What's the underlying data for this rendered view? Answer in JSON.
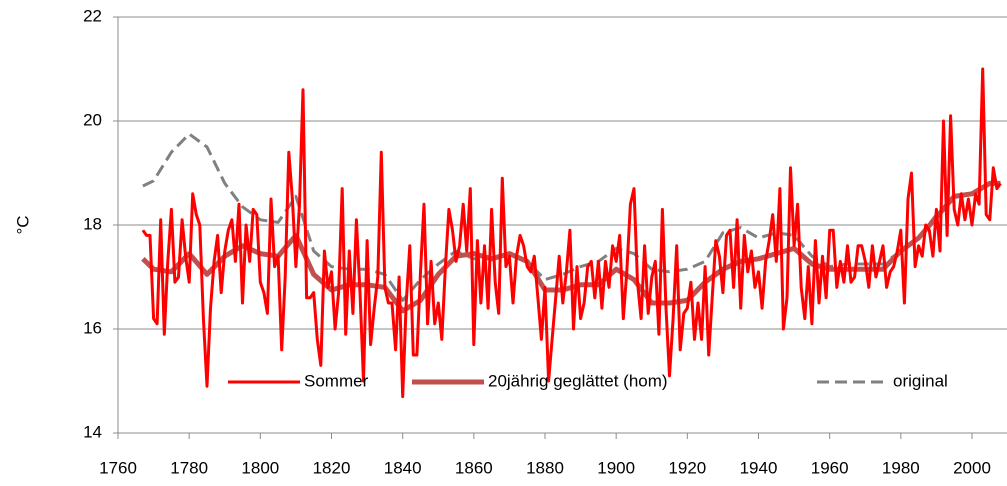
{
  "chart_data": {
    "type": "line",
    "y_label": "°C",
    "xlim": [
      1760,
      2010
    ],
    "xticks": [
      1760,
      1780,
      1800,
      1820,
      1840,
      1860,
      1880,
      1900,
      1920,
      1940,
      1960,
      1980,
      2000
    ],
    "ylim": [
      14,
      22
    ],
    "yticks": [
      14,
      16,
      18,
      20,
      22
    ],
    "grid": true,
    "legend": "bottom",
    "x": [
      1767,
      1768,
      1769,
      1770,
      1771,
      1772,
      1773,
      1774,
      1775,
      1776,
      1777,
      1778,
      1779,
      1780,
      1781,
      1782,
      1783,
      1784,
      1785,
      1786,
      1787,
      1788,
      1789,
      1790,
      1791,
      1792,
      1793,
      1794,
      1795,
      1796,
      1797,
      1798,
      1799,
      1800,
      1801,
      1802,
      1803,
      1804,
      1805,
      1806,
      1807,
      1808,
      1809,
      1810,
      1811,
      1812,
      1813,
      1814,
      1815,
      1816,
      1817,
      1818,
      1819,
      1820,
      1821,
      1822,
      1823,
      1824,
      1825,
      1826,
      1827,
      1828,
      1829,
      1830,
      1831,
      1832,
      1833,
      1834,
      1835,
      1836,
      1837,
      1838,
      1839,
      1840,
      1841,
      1842,
      1843,
      1844,
      1845,
      1846,
      1847,
      1848,
      1849,
      1850,
      1851,
      1852,
      1853,
      1854,
      1855,
      1856,
      1857,
      1858,
      1859,
      1860,
      1861,
      1862,
      1863,
      1864,
      1865,
      1866,
      1867,
      1868,
      1869,
      1870,
      1871,
      1872,
      1873,
      1874,
      1875,
      1876,
      1877,
      1878,
      1879,
      1880,
      1881,
      1882,
      1883,
      1884,
      1885,
      1886,
      1887,
      1888,
      1889,
      1890,
      1891,
      1892,
      1893,
      1894,
      1895,
      1896,
      1897,
      1898,
      1899,
      1900,
      1901,
      1902,
      1903,
      1904,
      1905,
      1906,
      1907,
      1908,
      1909,
      1910,
      1911,
      1912,
      1913,
      1914,
      1915,
      1916,
      1917,
      1918,
      1919,
      1920,
      1921,
      1922,
      1923,
      1924,
      1925,
      1926,
      1927,
      1928,
      1929,
      1930,
      1931,
      1932,
      1933,
      1934,
      1935,
      1936,
      1937,
      1938,
      1939,
      1940,
      1941,
      1942,
      1943,
      1944,
      1945,
      1946,
      1947,
      1948,
      1949,
      1950,
      1951,
      1952,
      1953,
      1954,
      1955,
      1956,
      1957,
      1958,
      1959,
      1960,
      1961,
      1962,
      1963,
      1964,
      1965,
      1966,
      1967,
      1968,
      1969,
      1970,
      1971,
      1972,
      1973,
      1974,
      1975,
      1976,
      1977,
      1978,
      1979,
      1980,
      1981,
      1982,
      1983,
      1984,
      1985,
      1986,
      1987,
      1988,
      1989,
      1990,
      1991,
      1992,
      1993,
      1994,
      1995,
      1996,
      1997,
      1998,
      1999,
      2000,
      2001,
      2002,
      2003,
      2004,
      2005,
      2006,
      2007,
      2008
    ],
    "series": [
      {
        "name": "Sommer",
        "color": "#ff0000",
        "width": 3,
        "dash": false,
        "values": [
          17.9,
          17.8,
          17.8,
          16.2,
          16.1,
          18.1,
          15.9,
          17.3,
          18.3,
          16.9,
          17.0,
          18.1,
          17.4,
          16.9,
          18.6,
          18.2,
          18.0,
          16.2,
          14.9,
          16.4,
          17.3,
          17.8,
          16.7,
          17.5,
          17.9,
          18.1,
          17.3,
          18.4,
          16.5,
          18.0,
          17.3,
          18.3,
          18.2,
          16.9,
          16.7,
          16.3,
          18.5,
          17.2,
          17.4,
          15.6,
          17.0,
          19.4,
          18.5,
          17.2,
          18.4,
          20.6,
          16.6,
          16.6,
          16.7,
          15.8,
          15.3,
          17.5,
          16.8,
          17.1,
          16.0,
          16.7,
          18.7,
          15.9,
          17.5,
          16.3,
          18.1,
          16.7,
          15.0,
          17.7,
          15.7,
          16.4,
          17.0,
          19.4,
          16.8,
          16.5,
          16.5,
          15.6,
          17.0,
          14.7,
          16.5,
          17.6,
          15.5,
          15.5,
          17.1,
          18.4,
          16.1,
          17.3,
          16.1,
          16.5,
          15.8,
          17.2,
          18.3,
          17.9,
          17.3,
          17.6,
          18.4,
          17.5,
          18.7,
          15.7,
          17.7,
          16.5,
          17.6,
          16.4,
          18.3,
          16.9,
          16.3,
          18.9,
          17.2,
          17.4,
          16.5,
          17.4,
          17.8,
          17.6,
          17.2,
          17.1,
          17.4,
          16.6,
          15.8,
          16.8,
          15.0,
          15.8,
          16.6,
          17.4,
          16.5,
          17.1,
          17.9,
          16.0,
          17.2,
          16.2,
          16.5,
          17.2,
          17.3,
          16.6,
          17.3,
          16.4,
          17.3,
          16.8,
          17.6,
          17.3,
          17.8,
          16.2,
          17.1,
          18.4,
          18.7,
          16.9,
          16.2,
          17.6,
          16.3,
          17.0,
          17.3,
          15.9,
          18.3,
          16.4,
          15.1,
          16.2,
          17.6,
          15.6,
          16.3,
          16.4,
          16.9,
          15.8,
          16.5,
          15.8,
          17.2,
          15.5,
          16.6,
          17.7,
          17.4,
          16.7,
          17.8,
          17.9,
          16.8,
          18.1,
          16.4,
          17.8,
          17.1,
          17.5,
          16.8,
          17.1,
          16.4,
          17.3,
          17.7,
          18.2,
          17.3,
          18.7,
          16.0,
          16.6,
          19.1,
          17.6,
          18.4,
          16.8,
          16.2,
          17.2,
          16.1,
          17.7,
          16.5,
          17.4,
          16.6,
          17.9,
          17.9,
          16.8,
          17.3,
          16.9,
          17.6,
          16.9,
          17.0,
          17.6,
          17.6,
          17.3,
          16.8,
          17.6,
          17.0,
          17.3,
          17.6,
          16.8,
          17.1,
          17.2,
          17.5,
          17.9,
          16.5,
          18.5,
          19.0,
          17.2,
          17.6,
          17.4,
          18.0,
          17.9,
          17.4,
          18.3,
          17.5,
          20.0,
          17.8,
          20.1,
          18.3,
          18.0,
          18.6,
          18.1,
          18.5,
          18.0,
          18.6,
          18.4,
          21.0,
          18.2,
          18.1,
          19.1,
          18.7,
          18.8
        ]
      },
      {
        "name": "20jährig geglättet (hom)",
        "color": "#c0504d",
        "width": 5,
        "dash": false,
        "x": [
          1767,
          1770,
          1775,
          1780,
          1785,
          1790,
          1795,
          1800,
          1805,
          1810,
          1815,
          1820,
          1825,
          1830,
          1835,
          1840,
          1845,
          1850,
          1855,
          1860,
          1865,
          1870,
          1875,
          1880,
          1885,
          1890,
          1895,
          1900,
          1905,
          1910,
          1915,
          1920,
          1925,
          1930,
          1935,
          1940,
          1945,
          1950,
          1955,
          1960,
          1965,
          1970,
          1975,
          1980,
          1985,
          1990,
          1995,
          2000,
          2005,
          2008
        ],
        "values": [
          17.35,
          17.15,
          17.1,
          17.45,
          17.05,
          17.4,
          17.6,
          17.45,
          17.4,
          17.8,
          17.05,
          16.75,
          16.85,
          16.85,
          16.8,
          16.35,
          16.55,
          17.05,
          17.4,
          17.45,
          17.35,
          17.45,
          17.3,
          16.75,
          16.75,
          16.85,
          16.85,
          17.15,
          16.95,
          16.5,
          16.5,
          16.55,
          16.9,
          17.15,
          17.3,
          17.35,
          17.45,
          17.55,
          17.25,
          17.15,
          17.15,
          17.15,
          17.15,
          17.5,
          17.75,
          18.15,
          18.55,
          18.6,
          18.8,
          18.8
        ]
      },
      {
        "name": "original",
        "color": "#808080",
        "width": 3,
        "dash": true,
        "x": [
          1767,
          1770,
          1775,
          1780,
          1785,
          1790,
          1795,
          1800,
          1805,
          1810,
          1815,
          1820,
          1825,
          1830,
          1835,
          1840,
          1845,
          1850,
          1855,
          1860,
          1865,
          1870,
          1875,
          1880,
          1885,
          1890,
          1895,
          1900,
          1905,
          1910,
          1915,
          1920,
          1925,
          1930,
          1935,
          1940,
          1945,
          1950,
          1955,
          1960,
          1965,
          1970,
          1975,
          1980,
          1985,
          1990,
          1995,
          2000,
          2005,
          2008
        ],
        "values": [
          18.75,
          18.85,
          19.4,
          19.75,
          19.5,
          18.8,
          18.35,
          18.1,
          18.05,
          18.55,
          17.5,
          17.2,
          17.15,
          17.15,
          17.05,
          16.55,
          16.95,
          17.25,
          17.5,
          17.35,
          17.35,
          17.45,
          17.3,
          16.95,
          17.05,
          17.2,
          17.3,
          17.55,
          17.45,
          17.15,
          17.1,
          17.15,
          17.3,
          17.85,
          17.95,
          17.75,
          17.85,
          17.8,
          17.4,
          17.2,
          17.25,
          17.25,
          17.25,
          17.5,
          17.75,
          18.2,
          18.55,
          18.6,
          18.8,
          18.8
        ]
      }
    ]
  }
}
